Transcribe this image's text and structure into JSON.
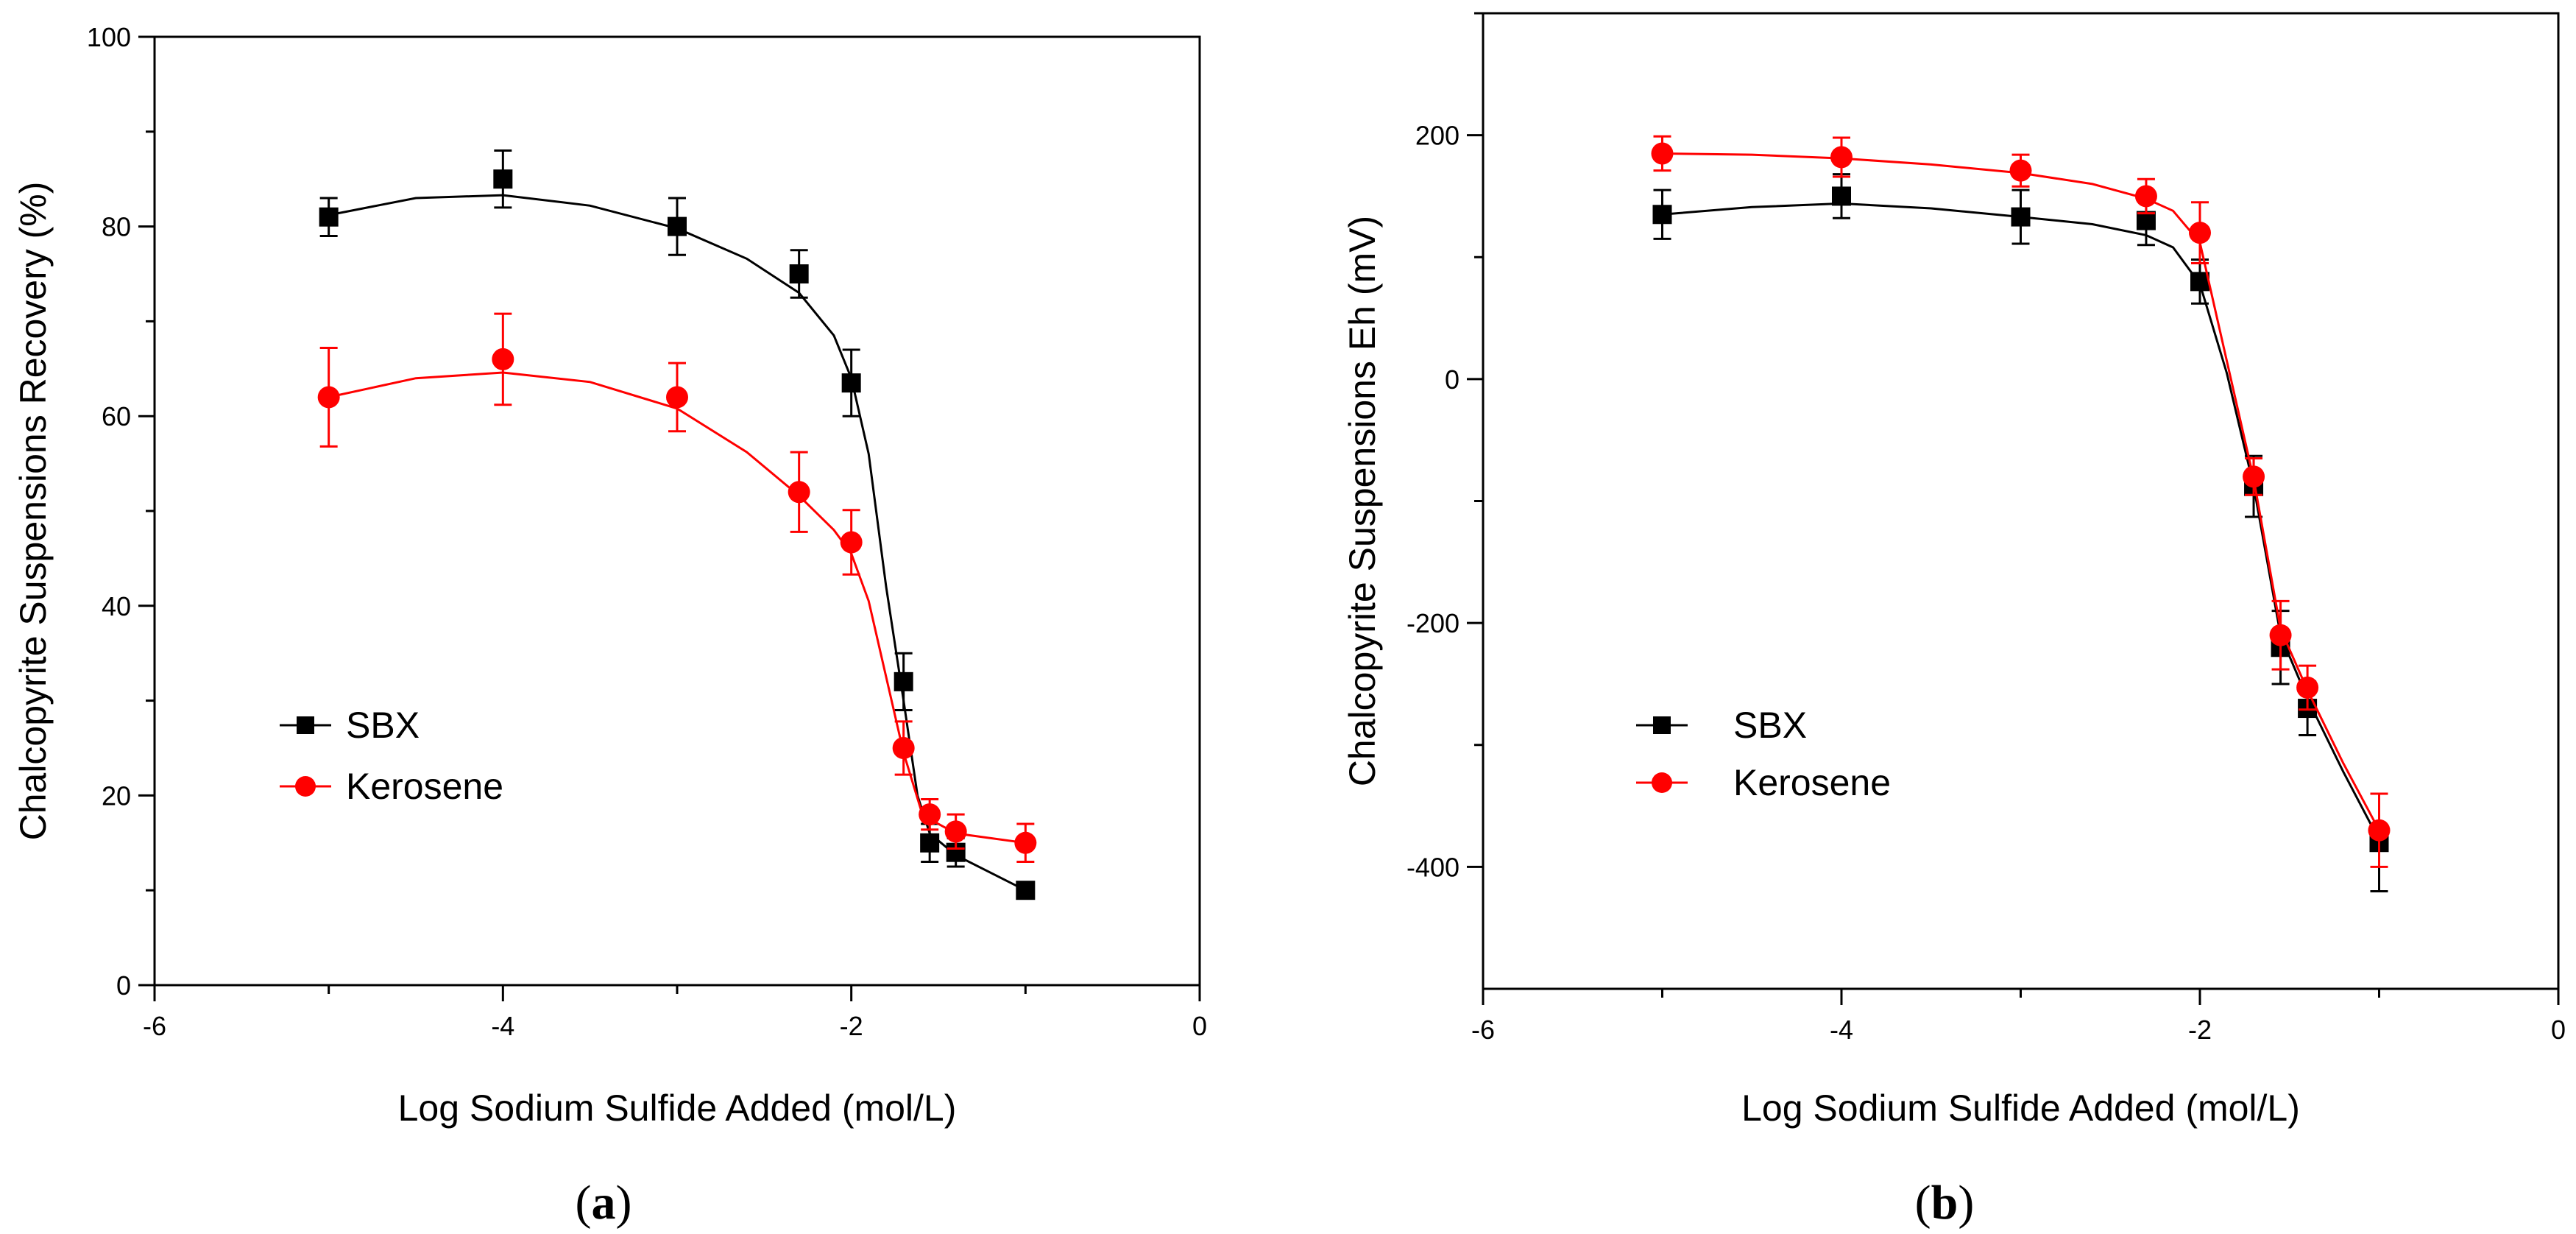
{
  "chart_data": [
    {
      "type": "line",
      "panel_label": "(a)",
      "panel_letter": "a",
      "xlabel": "Log Sodium Sulfide Added (mol/L)",
      "ylabel": "Chalcopyrite Suspensions Recovery (%)",
      "xlim": [
        -6,
        0
      ],
      "ylim": [
        0,
        100
      ],
      "xticks": [
        -6,
        -4,
        -2,
        0
      ],
      "yticks": [
        0,
        20,
        40,
        60,
        80,
        100
      ],
      "grid": false,
      "legend_position": "lower-left",
      "series": [
        {
          "name": "SBX",
          "color": "#000000",
          "marker": "square",
          "x": [
            -5,
            -4,
            -3,
            -2.3,
            -2,
            -1.7,
            -1.55,
            -1.4,
            -1
          ],
          "y": [
            81,
            85,
            80,
            75,
            63.5,
            32,
            15,
            14,
            10
          ],
          "error": [
            2,
            3,
            3,
            2.5,
            3.5,
            3,
            2,
            1.5,
            0.5
          ],
          "fit": [
            [
              -5,
              81.2
            ],
            [
              -4.5,
              83
            ],
            [
              -4,
              83.3
            ],
            [
              -3.5,
              82.2
            ],
            [
              -3,
              79.8
            ],
            [
              -2.6,
              76.6
            ],
            [
              -2.3,
              73
            ],
            [
              -2.1,
              68.5
            ],
            [
              -2,
              64
            ],
            [
              -1.9,
              56
            ],
            [
              -1.8,
              42
            ],
            [
              -1.7,
              30
            ],
            [
              -1.62,
              20
            ],
            [
              -1.55,
              16
            ],
            [
              -1.4,
              13.7
            ],
            [
              -1,
              10
            ]
          ]
        },
        {
          "name": "Kerosene",
          "color": "#ff0000",
          "marker": "circle",
          "x": [
            -5,
            -4,
            -3,
            -2.3,
            -2,
            -1.7,
            -1.55,
            -1.4,
            -1
          ],
          "y": [
            62,
            66,
            62,
            52,
            46.7,
            25,
            18,
            16.2,
            15
          ],
          "error": [
            5.2,
            4.8,
            3.6,
            4.2,
            3.4,
            2.8,
            1.6,
            1.8,
            2
          ],
          "fit": [
            [
              -5,
              62
            ],
            [
              -4.5,
              64
            ],
            [
              -4,
              64.6
            ],
            [
              -3.5,
              63.6
            ],
            [
              -3,
              60.8
            ],
            [
              -2.6,
              56.2
            ],
            [
              -2.3,
              51.6
            ],
            [
              -2.1,
              48
            ],
            [
              -2,
              45.5
            ],
            [
              -1.9,
              40.5
            ],
            [
              -1.8,
              32.5
            ],
            [
              -1.7,
              24.5
            ],
            [
              -1.6,
              18.5
            ],
            [
              -1.55,
              17.5
            ],
            [
              -1.4,
              16
            ],
            [
              -1,
              15
            ]
          ]
        }
      ]
    },
    {
      "type": "line",
      "panel_label": "(b)",
      "panel_letter": "b",
      "xlabel": "Log Sodium Sulfide Added (mol/L)",
      "ylabel": "Chalcopyrite Suspensions Eh (mV)",
      "xlim": [
        -6,
        0
      ],
      "ylim": [
        -500,
        300
      ],
      "xticks": [
        -6,
        -4,
        -2,
        0
      ],
      "yticks": [
        -400,
        -200,
        0,
        200
      ],
      "grid": false,
      "legend_position": "lower-left",
      "series": [
        {
          "name": "SBX",
          "color": "#000000",
          "marker": "square",
          "x": [
            -5,
            -4,
            -3,
            -2.3,
            -2,
            -1.7,
            -1.55,
            -1.4,
            -1
          ],
          "y": [
            135,
            150,
            133,
            130,
            80,
            -88,
            -220,
            -270,
            -380
          ],
          "error": [
            20,
            18,
            22,
            20,
            18,
            25,
            30,
            22,
            40
          ],
          "fit": [
            [
              -5,
              135
            ],
            [
              -4.5,
              141
            ],
            [
              -4,
              144
            ],
            [
              -3.5,
              140
            ],
            [
              -3,
              133
            ],
            [
              -2.6,
              127
            ],
            [
              -2.3,
              118
            ],
            [
              -2.15,
              108
            ],
            [
              -2,
              78
            ],
            [
              -1.85,
              5
            ],
            [
              -1.7,
              -88
            ],
            [
              -1.55,
              -210
            ],
            [
              -1.4,
              -262
            ],
            [
              -1.2,
              -322
            ],
            [
              -1,
              -378
            ]
          ]
        },
        {
          "name": "Kerosene",
          "color": "#ff0000",
          "marker": "circle",
          "x": [
            -5,
            -4,
            -3,
            -2.3,
            -2,
            -1.7,
            -1.55,
            -1.4,
            -1
          ],
          "y": [
            185,
            182,
            171,
            150,
            120,
            -80,
            -210,
            -253,
            -370
          ],
          "error": [
            14,
            16,
            13,
            14,
            25,
            15,
            28,
            18,
            30
          ],
          "fit": [
            [
              -5,
              185
            ],
            [
              -4.5,
              184
            ],
            [
              -4,
              181
            ],
            [
              -3.5,
              176
            ],
            [
              -3,
              169
            ],
            [
              -2.6,
              160
            ],
            [
              -2.3,
              148
            ],
            [
              -2.15,
              138
            ],
            [
              -2,
              112
            ],
            [
              -1.85,
              15
            ],
            [
              -1.7,
              -82
            ],
            [
              -1.55,
              -205
            ],
            [
              -1.4,
              -255
            ],
            [
              -1.2,
              -315
            ],
            [
              -1,
              -370
            ]
          ]
        }
      ]
    }
  ]
}
